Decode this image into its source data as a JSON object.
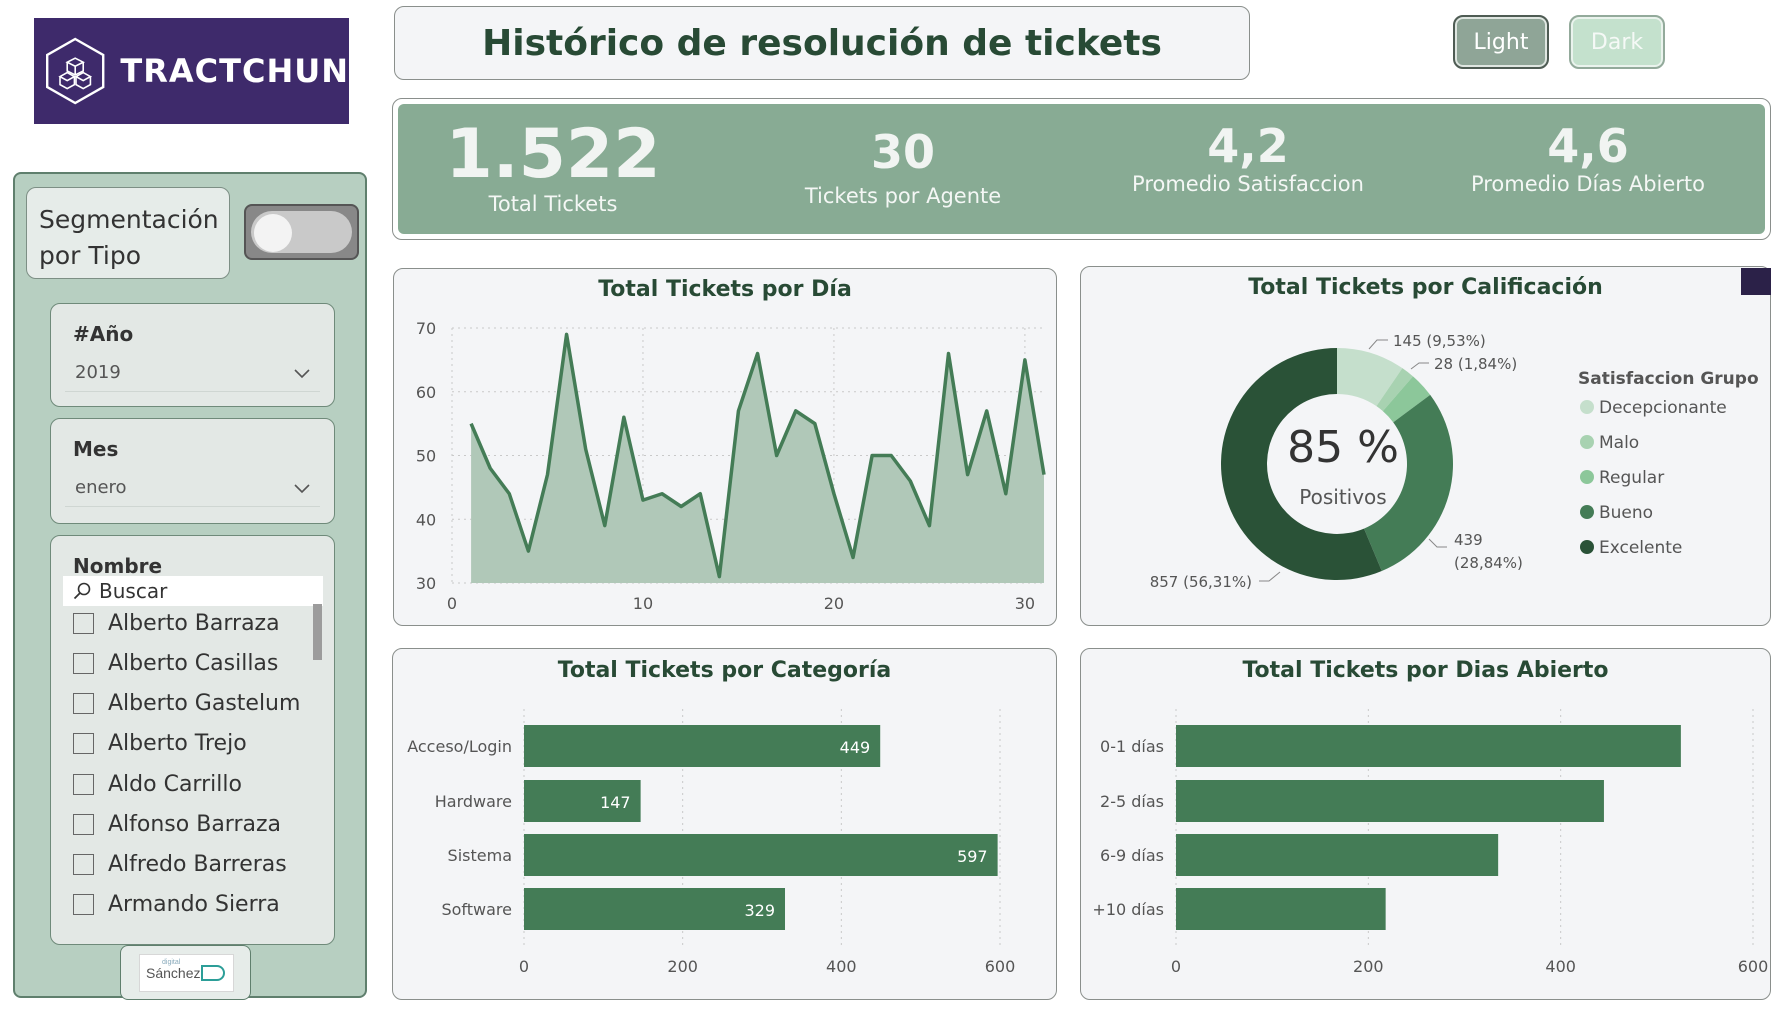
{
  "brand": {
    "name": "TRACTCHUN",
    "bg_color": "#3e2a6b"
  },
  "title": "Histórico de resolución de tickets",
  "theme_buttons": {
    "light": "Light",
    "dark": "Dark"
  },
  "sidebar": {
    "segmentation_label": "Segmentación por Tipo",
    "year_filter": {
      "label": "#Año",
      "value": "2019"
    },
    "month_filter": {
      "label": "Mes",
      "value": "enero"
    },
    "name_filter": {
      "label": "Nombre",
      "search_placeholder": "Buscar",
      "items": [
        "Alberto Barraza",
        "Alberto Casillas",
        "Alberto Gastelum",
        "Alberto Trejo",
        "Aldo Carrillo",
        "Alfonso Barraza",
        "Alfredo Barreras",
        "Armando Sierra"
      ]
    },
    "footer_logo": {
      "small": "digital",
      "name": "Sánchez"
    }
  },
  "kpis": [
    {
      "value": "1.522",
      "label": "Total Tickets"
    },
    {
      "value": "30",
      "label": "Tickets por Agente"
    },
    {
      "value": "4,2",
      "label": "Promedio Satisfaccion"
    },
    {
      "value": "4,6",
      "label": "Promedio Días Abierto"
    }
  ],
  "colors": {
    "primary": "#447c56",
    "kpi_band": "#88ab94",
    "sidebar": "#b7cfc1",
    "title": "#284a35"
  },
  "chart_data": [
    {
      "type": "area",
      "title": "Total Tickets por Día",
      "xlabel": "",
      "ylabel": "",
      "x": [
        1,
        2,
        3,
        4,
        5,
        6,
        7,
        8,
        9,
        10,
        11,
        12,
        13,
        14,
        15,
        16,
        17,
        18,
        19,
        20,
        21,
        22,
        23,
        24,
        25,
        26,
        27,
        28,
        29,
        30,
        31
      ],
      "values": [
        55,
        48,
        44,
        35,
        47,
        69,
        51,
        39,
        56,
        43,
        44,
        42,
        44,
        31,
        57,
        66,
        50,
        57,
        55,
        44,
        34,
        50,
        50,
        46,
        39,
        66,
        47,
        57,
        44,
        65,
        47
      ],
      "xlim": [
        0,
        31
      ],
      "ylim": [
        30,
        70
      ],
      "xticks": [
        "0",
        "10",
        "20",
        "30"
      ],
      "yticks": [
        "30",
        "40",
        "50",
        "60",
        "70"
      ],
      "grid": true
    },
    {
      "type": "pie",
      "title": "Total Tickets por Calificación",
      "center_value": "85 %",
      "center_label": "Positivos",
      "legend_title": "Satisfaccion Grupo",
      "legend_position": "right",
      "categories": [
        "Decepcionante",
        "Malo",
        "Regular",
        "Bueno",
        "Excelente"
      ],
      "values": [
        145,
        28,
        53,
        439,
        857
      ],
      "colors": [
        "#c5dfcc",
        "#a8d2b1",
        "#8cc79a",
        "#447c56",
        "#2a5237"
      ],
      "data_labels": [
        {
          "text": "145 (9,53%)"
        },
        {
          "text": "28 (1,84%)"
        },
        {
          "text": ""
        },
        {
          "text": "439",
          "text2": "(28,84%)"
        },
        {
          "text": "857 (56,31%)"
        }
      ]
    },
    {
      "type": "bar",
      "orientation": "horizontal",
      "title": "Total Tickets por Categoría",
      "categories": [
        "Acceso/Login",
        "Hardware",
        "Sistema",
        "Software"
      ],
      "values": [
        449,
        147,
        597,
        329
      ],
      "value_labels": [
        "449",
        "147",
        "597",
        "329"
      ],
      "xlim": [
        0,
        600
      ],
      "xticks": [
        "0",
        "200",
        "400",
        "600"
      ],
      "show_data_labels": true
    },
    {
      "type": "bar",
      "orientation": "horizontal",
      "title": "Total Tickets por Dias Abierto",
      "categories": [
        "0-1 días",
        "2-5 días",
        "6-9 días",
        "+10 días"
      ],
      "values": [
        525,
        445,
        335,
        218
      ],
      "xlim": [
        0,
        600
      ],
      "xticks": [
        "0",
        "200",
        "400",
        "600"
      ],
      "show_data_labels": false
    }
  ]
}
